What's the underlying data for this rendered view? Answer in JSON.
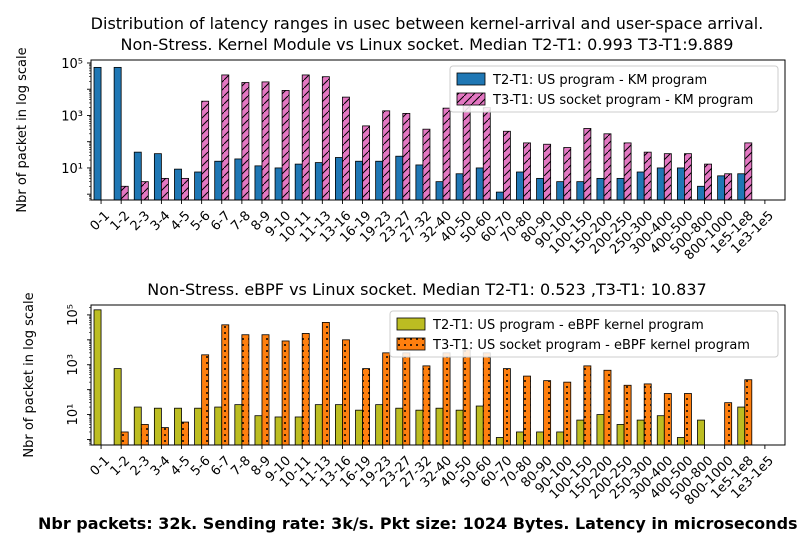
{
  "footer": "Nbr packets: 32k. Sending rate: 3k/s. Pkt size: 1024 Bytes. Latency in microseconds",
  "chart_data": [
    {
      "type": "bar",
      "title_line1": "Distribution of latency ranges in usec between kernel-arrival and user-space arrival.",
      "title_line2": "Non-Stress. Kernel Module vs Linux socket. Median T2-T1: 0.993 T3-T1:9.889",
      "ylabel": "Nbr of packet in log scale",
      "yscale": "log",
      "ylim": [
        0.6,
        130000
      ],
      "yticks": [
        {
          "value": 10,
          "label": "10¹"
        },
        {
          "value": 1000,
          "label": "10³"
        },
        {
          "value": 100000,
          "label": "10⁵"
        }
      ],
      "legend_position": "top-right",
      "categories": [
        "0-1",
        "1-2",
        "2-3",
        "3-4",
        "4-5",
        "5-6",
        "6-7",
        "7-8",
        "8-9",
        "9-10",
        "10-11",
        "11-13",
        "13-16",
        "16-19",
        "19-23",
        "23-27",
        "27-32",
        "32-40",
        "40-50",
        "50-60",
        "60-70",
        "70-80",
        "80-90",
        "90-100",
        "100-150",
        "150-200",
        "200-250",
        "250-300",
        "300-400",
        "400-500",
        "500-800",
        "800-1000",
        "1e5-1e8",
        "1e3-1e5"
      ],
      "series": [
        {
          "name": "T2-T1: US program - KM program",
          "color": "#1f77b4",
          "hatch": "none",
          "values": [
            68000,
            68000,
            40,
            35,
            9,
            7,
            18,
            22,
            12,
            10,
            14,
            16,
            25,
            18,
            18,
            28,
            13,
            3,
            6,
            10,
            1.2,
            7,
            4,
            3,
            3,
            4,
            4,
            7,
            10,
            10,
            2,
            5,
            6,
            0
          ]
        },
        {
          "name": "T3-T1: US socket program - KM program",
          "color": "#e377c2",
          "hatch": "diagonal",
          "values": [
            0,
            2,
            3,
            4,
            4,
            3500,
            35000,
            18000,
            19000,
            9000,
            35000,
            30000,
            5000,
            400,
            1500,
            1200,
            300,
            1900,
            3500,
            2000,
            250,
            90,
            80,
            60,
            320,
            200,
            90,
            40,
            35,
            35,
            14,
            6,
            90,
            0
          ]
        }
      ]
    },
    {
      "type": "bar",
      "title_line1": "Non-Stress. eBPF vs Linux socket. Median T2-T1: 0.523 ,T3-T1: 10.837",
      "ylabel": "Nbr of packet in log scale",
      "yscale": "log",
      "ylim": [
        0.6,
        250000
      ],
      "yticks": [
        {
          "value": 10,
          "label": "10¹"
        },
        {
          "value": 1000,
          "label": "10³"
        },
        {
          "value": 100000,
          "label": "10⁵"
        }
      ],
      "legend_position": "top-right",
      "categories": [
        "0-1",
        "1-2",
        "2-3",
        "3-4",
        "4-5",
        "5-6",
        "6-7",
        "7-8",
        "8-9",
        "9-10",
        "10-11",
        "11-13",
        "13-16",
        "16-19",
        "19-23",
        "23-27",
        "27-32",
        "32-40",
        "40-50",
        "50-60",
        "60-70",
        "70-80",
        "80-90",
        "90-100",
        "100-150",
        "150-200",
        "200-250",
        "250-300",
        "300-400",
        "400-500",
        "500-800",
        "800-1000",
        "1e5-1e8",
        "1e3-1e5"
      ],
      "series": [
        {
          "name": "T2-T1: US program - eBPF kernel program",
          "color": "#bcbd22",
          "hatch": "none",
          "values": [
            160000,
            700,
            20,
            18,
            18,
            18,
            20,
            25,
            9,
            8,
            8,
            25,
            25,
            15,
            25,
            18,
            15,
            18,
            15,
            22,
            1.2,
            2,
            2,
            2,
            6,
            10,
            4,
            6,
            9,
            1.2,
            6,
            0,
            20,
            0
          ]
        },
        {
          "name": "T3-T1: US socket program - eBPF kernel program",
          "color": "#ff7f0e",
          "hatch": "dots",
          "values": [
            0,
            2,
            4,
            3,
            5,
            2500,
            40000,
            16000,
            16000,
            9000,
            18000,
            50000,
            10000,
            700,
            3000,
            3000,
            900,
            3000,
            4000,
            3000,
            700,
            350,
            230,
            200,
            900,
            600,
            150,
            170,
            70,
            70,
            0,
            30,
            250,
            0
          ]
        }
      ]
    }
  ]
}
